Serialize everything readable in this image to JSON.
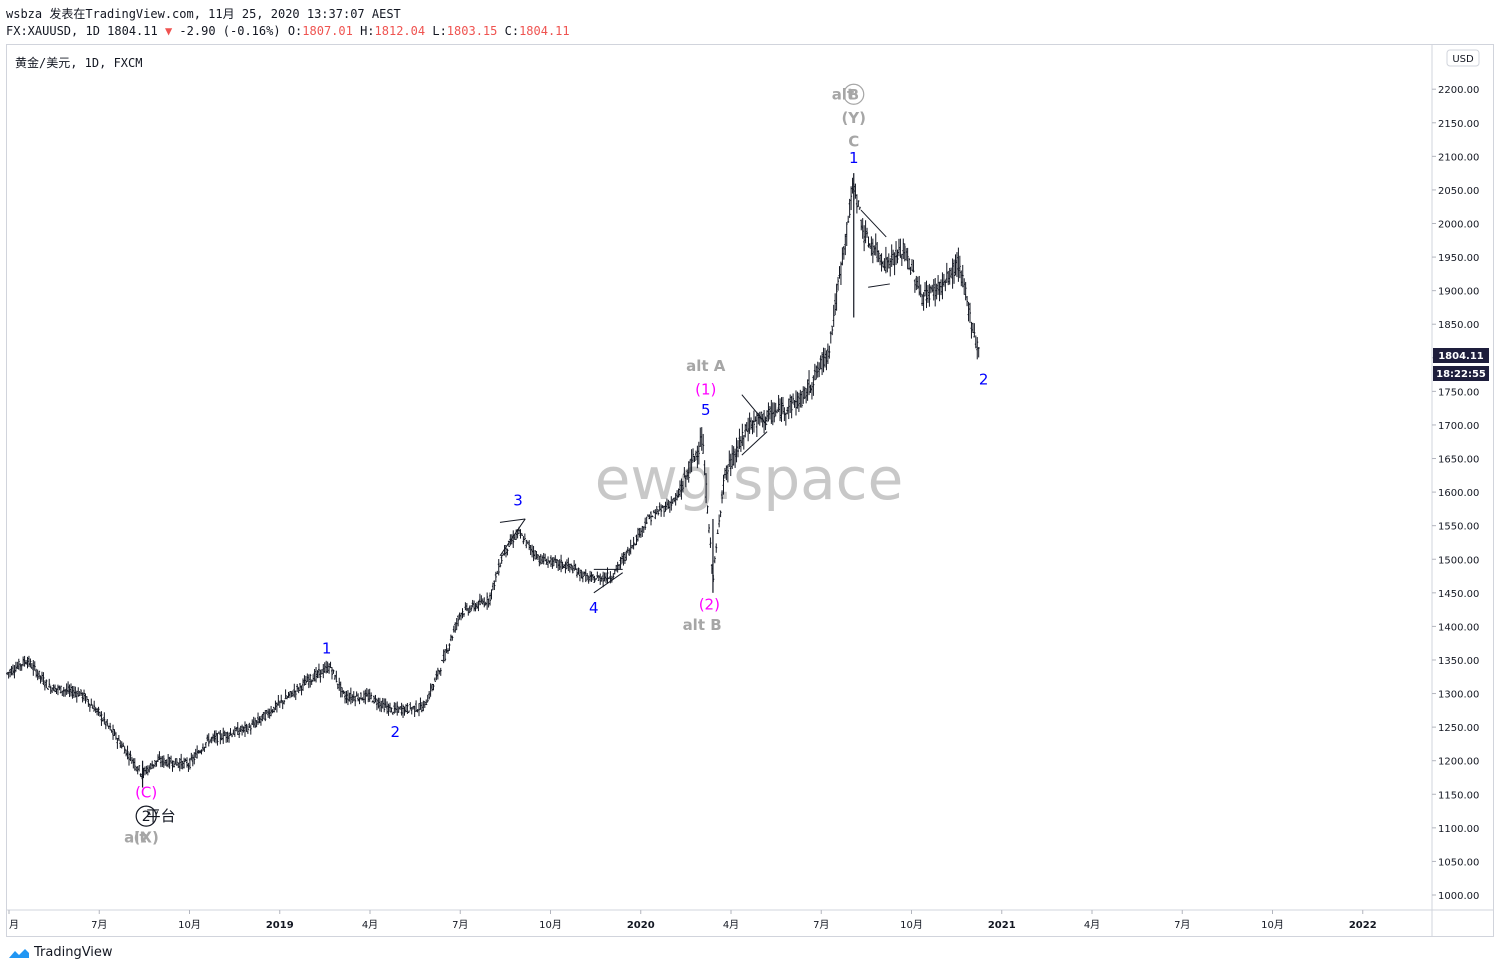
{
  "header": {
    "publish_line": "wsbza 发表在TradingView.com, 11月 25, 2020 13:37:07 AEST",
    "symbol_prefix": "FX:XAUUSD, 1D 1804.11",
    "change_arrow": "▼",
    "change": "-2.90 (-0.16%)",
    "open_label": "O:",
    "open_value": "1807.01",
    "high_label": "H:",
    "high_value": "1812.04",
    "low_label": "L:",
    "low_value": "1803.15",
    "close_label": "C:",
    "close_value": "1804.11"
  },
  "legend": {
    "symbol": "黄金/美元, 1D, FXCM"
  },
  "footer": {
    "brand": "TradingView"
  },
  "watermark": "ewg.space",
  "currency_button": "USD",
  "price_tag": "1804.11",
  "countdown_tag": "18:22:55",
  "colors": {
    "candle": "#131722",
    "wave_blue": "#0000ff",
    "wave_magenta": "#ff00ff",
    "alt_gray": "#a6a6a6",
    "price_tag_bg": "#1e1e3c"
  },
  "chart_data": {
    "type": "bar",
    "title": "黄金/美元, 1D, FXCM",
    "ylabel": "",
    "xlabel": "",
    "ylim": [
      970,
      2230
    ],
    "grid": false,
    "y_ticks": [
      "2200.00",
      "2150.00",
      "2100.00",
      "2050.00",
      "2000.00",
      "1950.00",
      "1900.00",
      "1850.00",
      "1800.00",
      "1750.00",
      "1700.00",
      "1650.00",
      "1600.00",
      "1550.00",
      "1500.00",
      "1450.00",
      "1400.00",
      "1350.00",
      "1300.00",
      "1250.00",
      "1200.00",
      "1150.00",
      "1100.00",
      "1050.00",
      "1000.00"
    ],
    "x_ticks": [
      {
        "label": "月",
        "t": 2018.25
      },
      {
        "label": "7月",
        "t": 2018.5
      },
      {
        "label": "10月",
        "t": 2018.75
      },
      {
        "label": "2019",
        "t": 2019.0
      },
      {
        "label": "4月",
        "t": 2019.25
      },
      {
        "label": "7月",
        "t": 2019.5
      },
      {
        "label": "10月",
        "t": 2019.75
      },
      {
        "label": "2020",
        "t": 2020.0
      },
      {
        "label": "4月",
        "t": 2020.25
      },
      {
        "label": "7月",
        "t": 2020.5
      },
      {
        "label": "10月",
        "t": 2020.75
      },
      {
        "label": "2021",
        "t": 2021.0
      },
      {
        "label": "4月",
        "t": 2021.25
      },
      {
        "label": "7月",
        "t": 2021.5
      },
      {
        "label": "10月",
        "t": 2021.75
      },
      {
        "label": "2022",
        "t": 2022.0
      }
    ],
    "price_path": [
      {
        "t": 2018.245,
        "price": 1330
      },
      {
        "t": 2018.3,
        "price": 1350
      },
      {
        "t": 2018.36,
        "price": 1310
      },
      {
        "t": 2018.45,
        "price": 1300
      },
      {
        "t": 2018.5,
        "price": 1270
      },
      {
        "t": 2018.56,
        "price": 1225
      },
      {
        "t": 2018.62,
        "price": 1180
      },
      {
        "t": 2018.66,
        "price": 1200
      },
      {
        "t": 2018.75,
        "price": 1195
      },
      {
        "t": 2018.8,
        "price": 1230
      },
      {
        "t": 2018.92,
        "price": 1250
      },
      {
        "t": 2019.0,
        "price": 1285
      },
      {
        "t": 2019.08,
        "price": 1320
      },
      {
        "t": 2019.14,
        "price": 1340
      },
      {
        "t": 2019.18,
        "price": 1295
      },
      {
        "t": 2019.25,
        "price": 1295
      },
      {
        "t": 2019.31,
        "price": 1275
      },
      {
        "t": 2019.4,
        "price": 1280
      },
      {
        "t": 2019.45,
        "price": 1345
      },
      {
        "t": 2019.5,
        "price": 1420
      },
      {
        "t": 2019.58,
        "price": 1440
      },
      {
        "t": 2019.62,
        "price": 1510
      },
      {
        "t": 2019.66,
        "price": 1540
      },
      {
        "t": 2019.72,
        "price": 1500
      },
      {
        "t": 2019.8,
        "price": 1490
      },
      {
        "t": 2019.86,
        "price": 1470
      },
      {
        "t": 2019.92,
        "price": 1475
      },
      {
        "t": 2019.97,
        "price": 1515
      },
      {
        "t": 2020.02,
        "price": 1560
      },
      {
        "t": 2020.1,
        "price": 1590
      },
      {
        "t": 2020.17,
        "price": 1680
      },
      {
        "t": 2020.2,
        "price": 1470
      },
      {
        "t": 2020.23,
        "price": 1620
      },
      {
        "t": 2020.3,
        "price": 1700
      },
      {
        "t": 2020.38,
        "price": 1720
      },
      {
        "t": 2020.45,
        "price": 1740
      },
      {
        "t": 2020.52,
        "price": 1810
      },
      {
        "t": 2020.59,
        "price": 2060
      },
      {
        "t": 2020.62,
        "price": 1980
      },
      {
        "t": 2020.68,
        "price": 1940
      },
      {
        "t": 2020.73,
        "price": 1960
      },
      {
        "t": 2020.78,
        "price": 1890
      },
      {
        "t": 2020.84,
        "price": 1910
      },
      {
        "t": 2020.88,
        "price": 1940
      },
      {
        "t": 2020.91,
        "price": 1870
      },
      {
        "t": 2020.93,
        "price": 1820
      },
      {
        "t": 2020.94,
        "price": 1804
      }
    ],
    "annotations": [
      {
        "text": "1",
        "t": 2019.13,
        "price": 1360,
        "color": "#0000ff"
      },
      {
        "text": "2",
        "t": 2019.32,
        "price": 1235,
        "color": "#0000ff"
      },
      {
        "text": "3",
        "t": 2019.66,
        "price": 1580,
        "color": "#0000ff"
      },
      {
        "text": "4",
        "t": 2019.87,
        "price": 1420,
        "color": "#0000ff"
      },
      {
        "text": "5",
        "t": 2020.18,
        "price": 1715,
        "color": "#0000ff"
      },
      {
        "text": "(1)",
        "t": 2020.18,
        "price": 1745,
        "color": "#ff00ff"
      },
      {
        "text": "alt A",
        "t": 2020.18,
        "price": 1780,
        "color": "#a6a6a6"
      },
      {
        "text": "(2)",
        "t": 2020.19,
        "price": 1425,
        "color": "#ff00ff"
      },
      {
        "text": "alt B",
        "t": 2020.17,
        "price": 1395,
        "color": "#a6a6a6"
      },
      {
        "text": "1",
        "t": 2020.59,
        "price": 2090,
        "color": "#0000ff"
      },
      {
        "text": "C",
        "t": 2020.59,
        "price": 2115,
        "color": "#a6a6a6"
      },
      {
        "text": "(Y)",
        "t": 2020.59,
        "price": 2150,
        "color": "#a6a6a6"
      },
      {
        "text": "alt",
        "t": 2020.56,
        "price": 2185,
        "color": "#a6a6a6"
      },
      {
        "text": "B",
        "t": 2020.59,
        "price": 2185,
        "color": "#a6a6a6",
        "circled": true
      },
      {
        "text": "2",
        "t": 2020.95,
        "price": 1760,
        "color": "#0000ff"
      },
      {
        "text": "(C)",
        "t": 2018.63,
        "price": 1145,
        "color": "#ff00ff"
      },
      {
        "text": "2",
        "t": 2018.63,
        "price": 1110,
        "color": "#131722",
        "circled": true
      },
      {
        "text": "平台",
        "t": 2018.67,
        "price": 1110,
        "color": "#131722"
      },
      {
        "text": "alt",
        "t": 2018.6,
        "price": 1078,
        "color": "#a6a6a6"
      },
      {
        "text": "(X)",
        "t": 2018.63,
        "price": 1078,
        "color": "#a6a6a6"
      }
    ]
  }
}
